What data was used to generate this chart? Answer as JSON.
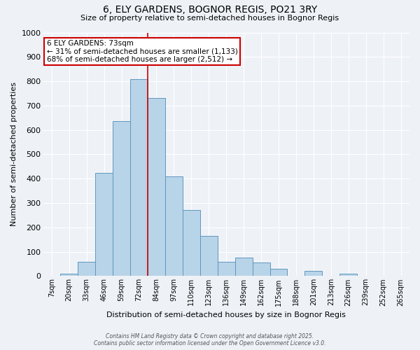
{
  "title1": "6, ELY GARDENS, BOGNOR REGIS, PO21 3RY",
  "title2": "Size of property relative to semi-detached houses in Bognor Regis",
  "xlabel": "Distribution of semi-detached houses by size in Bognor Regis",
  "ylabel": "Number of semi-detached properties",
  "categories": [
    "7sqm",
    "20sqm",
    "33sqm",
    "46sqm",
    "59sqm",
    "72sqm",
    "84sqm",
    "97sqm",
    "110sqm",
    "123sqm",
    "136sqm",
    "149sqm",
    "162sqm",
    "175sqm",
    "188sqm",
    "201sqm",
    "213sqm",
    "226sqm",
    "239sqm",
    "252sqm",
    "265sqm"
  ],
  "values": [
    0,
    10,
    60,
    425,
    635,
    810,
    730,
    410,
    270,
    165,
    60,
    75,
    55,
    30,
    0,
    20,
    0,
    10,
    0,
    0,
    0
  ],
  "bar_color": "#b8d4e8",
  "bar_edge_color": "#6096be",
  "highlight_bar_idx": 6,
  "highlight_line_color": "#cc0000",
  "annotation_title": "6 ELY GARDENS: 73sqm",
  "annotation_line1": "← 31% of semi-detached houses are smaller (1,133)",
  "annotation_line2": "68% of semi-detached houses are larger (2,512) →",
  "annotation_box_edge_color": "#cc0000",
  "ylim": [
    0,
    1000
  ],
  "yticks": [
    0,
    100,
    200,
    300,
    400,
    500,
    600,
    700,
    800,
    900,
    1000
  ],
  "bg_color": "#eef2f7",
  "grid_color": "#ffffff",
  "footer1": "Contains HM Land Registry data © Crown copyright and database right 2025.",
  "footer2": "Contains public sector information licensed under the Open Government Licence v3.0."
}
